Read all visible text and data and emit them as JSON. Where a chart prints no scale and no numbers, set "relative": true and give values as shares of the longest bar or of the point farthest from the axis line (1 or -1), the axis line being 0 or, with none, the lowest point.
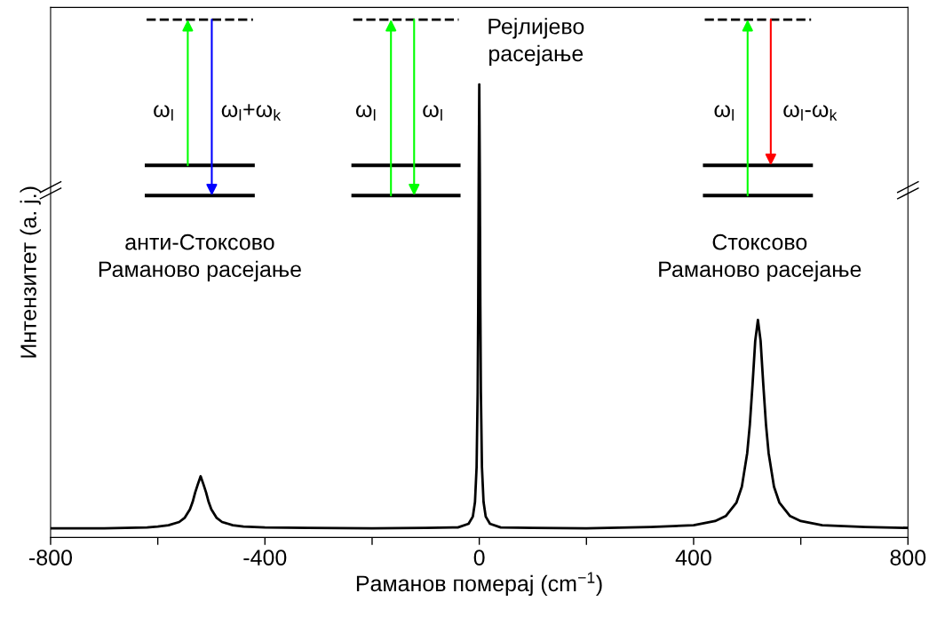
{
  "chart_data": {
    "type": "line",
    "relative": true,
    "xlabel": "Раманов померај (cm$^{−1}$)",
    "ylabel": "Интензитет (а. ј.)",
    "x": [
      -800,
      -700,
      -620,
      -600,
      -580,
      -560,
      -550,
      -540,
      -535,
      -530,
      -525,
      -520,
      -515,
      -510,
      -505,
      -500,
      -490,
      -480,
      -460,
      -440,
      -400,
      -320,
      -200,
      -100,
      -40,
      -20,
      -12,
      -8,
      -5,
      -3,
      -2,
      -1,
      0,
      1,
      2,
      3,
      5,
      8,
      12,
      20,
      40,
      100,
      200,
      320,
      400,
      440,
      460,
      480,
      490,
      500,
      505,
      510,
      515,
      520,
      525,
      530,
      535,
      540,
      550,
      560,
      580,
      600,
      640,
      720,
      800
    ],
    "series": [
      {
        "color": "#000000",
        "values": [
          0.02,
          0.02,
          0.022,
          0.024,
          0.027,
          0.034,
          0.043,
          0.062,
          0.078,
          0.1,
          0.118,
          0.135,
          0.118,
          0.1,
          0.078,
          0.062,
          0.043,
          0.034,
          0.027,
          0.024,
          0.022,
          0.021,
          0.02,
          0.021,
          0.022,
          0.03,
          0.046,
          0.078,
          0.155,
          0.32,
          0.51,
          0.804,
          1.0,
          0.804,
          0.51,
          0.32,
          0.155,
          0.078,
          0.046,
          0.03,
          0.022,
          0.021,
          0.02,
          0.023,
          0.027,
          0.036,
          0.047,
          0.077,
          0.112,
          0.186,
          0.25,
          0.338,
          0.434,
          0.48,
          0.434,
          0.338,
          0.25,
          0.186,
          0.112,
          0.077,
          0.047,
          0.036,
          0.027,
          0.023,
          0.021
        ]
      }
    ],
    "xlim": [
      -800,
      800
    ],
    "xticks": [
      -800,
      {
        "value": -600,
        "label": null
      },
      -400,
      {
        "value": -200,
        "label": null
      },
      0,
      {
        "value": 200,
        "label": null
      },
      400,
      {
        "value": 600,
        "label": null
      },
      800
    ],
    "tick_labels": "x",
    "grid": false,
    "marker": "none",
    "line_style": "solid",
    "annotations": [
      "анти-Стоксово\nРаманово расејање",
      "Рејлијево\nрасејање",
      "Стоксово\nРаманово расејање",
      "ω$_{l}$",
      "ω$_{l}$+ω$_{k}$",
      "ω$_{l}$",
      "ω$_{l}$",
      "ω$_{l}$",
      "ω$_{l}$-ω$_{k}$"
    ]
  }
}
